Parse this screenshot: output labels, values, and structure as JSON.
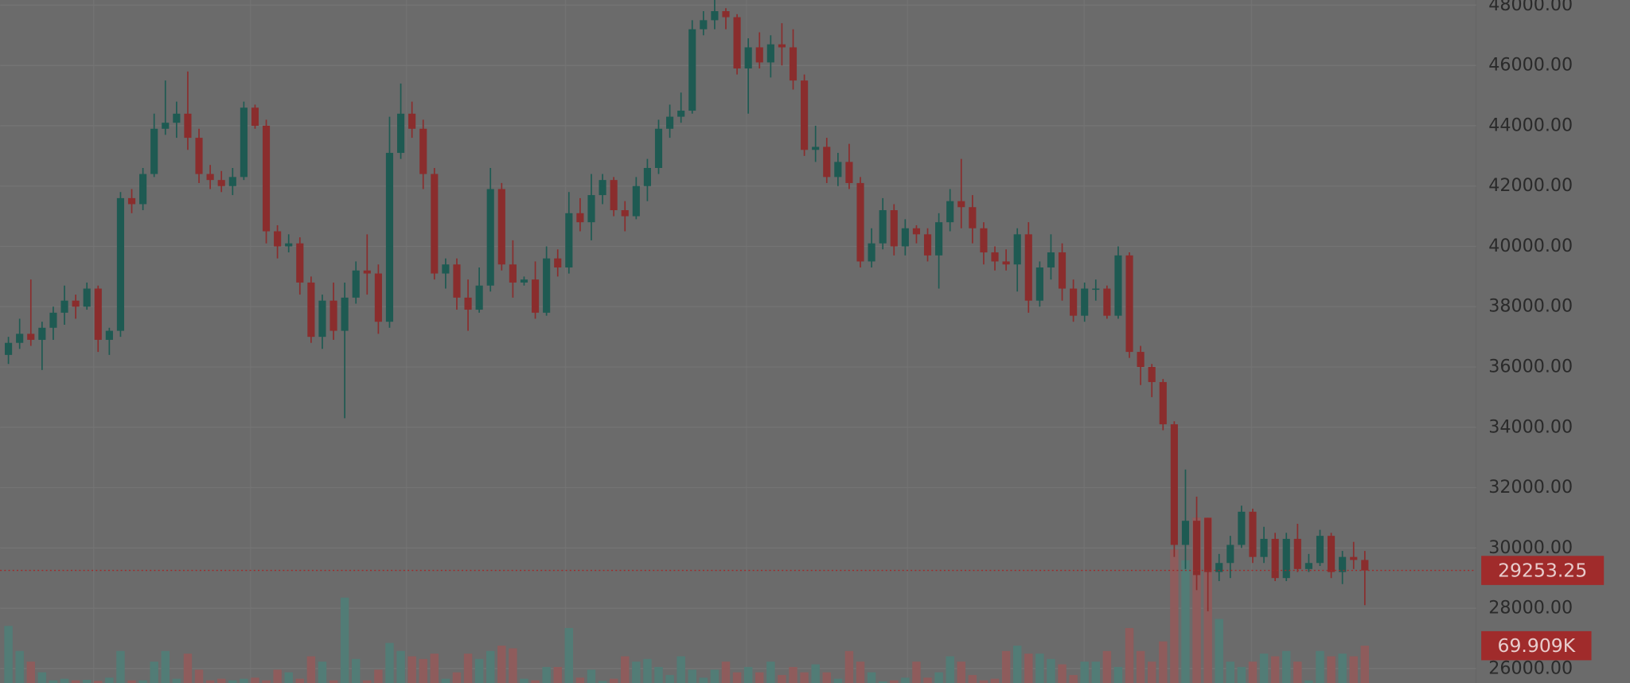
{
  "chart_data": {
    "type": "candlestick",
    "up_color": "#1e5a52",
    "down_color": "#8a2d2d",
    "volume_up_color": "#527c76",
    "volume_down_color": "#8e5c5c",
    "label_color": "#a02b2b",
    "label_text_color": "#e8cccc",
    "grid": true,
    "ylim": [
      25520,
      48170
    ],
    "yticks": [
      {
        "value": 26000,
        "label": "26000.00"
      },
      {
        "value": 28000,
        "label": "28000.00"
      },
      {
        "value": 30000,
        "label": "30000.00"
      },
      {
        "value": 32000,
        "label": "32000.00"
      },
      {
        "value": 34000,
        "label": "34000.00"
      },
      {
        "value": 36000,
        "label": "36000.00"
      },
      {
        "value": 38000,
        "label": "38000.00"
      },
      {
        "value": 40000,
        "label": "40000.00"
      },
      {
        "value": 42000,
        "label": "42000.00"
      },
      {
        "value": 44000,
        "label": "44000.00"
      },
      {
        "value": 46000,
        "label": "46000.00"
      },
      {
        "value": 48000,
        "label": "48000.00"
      }
    ],
    "open": [
      36400,
      36800,
      37100,
      36900,
      37300,
      37800,
      38200,
      38000,
      38600,
      36900,
      37200,
      41600,
      41400,
      42400,
      43900,
      44100,
      44400,
      43600,
      42400,
      42200,
      42000,
      42300,
      44600,
      44000,
      40500,
      40000,
      40100,
      38800,
      37000,
      38200,
      37200,
      38300,
      39200,
      39100,
      37500,
      43100,
      44400,
      43900,
      42400,
      39100,
      39400,
      38300,
      37900,
      38700,
      41900,
      39400,
      38800,
      38900,
      37800,
      39600,
      39300,
      41100,
      40800,
      41700,
      42200,
      41200,
      41000,
      42000,
      42600,
      43900,
      44300,
      44500,
      47200,
      47500,
      47800,
      47600,
      45900,
      46600,
      46100,
      46700,
      46600,
      45500,
      43200,
      43300,
      42300,
      42800,
      42100,
      39500,
      40100,
      41200,
      40000,
      40600,
      40400,
      39700,
      40800,
      41500,
      41300,
      40600,
      39800,
      39500,
      39400,
      40400,
      38200,
      39300,
      39800,
      38600,
      37700,
      38600,
      38600,
      37700,
      39700,
      36500,
      36000,
      35500,
      34100,
      30100,
      30900,
      31000,
      29200,
      29500,
      30100,
      31200,
      29700,
      30300,
      29000,
      30300,
      29300,
      29500,
      30400,
      29200,
      29700,
      29600
    ],
    "high": [
      37000,
      37600,
      38900,
      37500,
      38000,
      38700,
      38400,
      38800,
      38700,
      37300,
      41800,
      41900,
      42600,
      44400,
      45500,
      44800,
      45800,
      43900,
      42700,
      42500,
      42600,
      44800,
      44700,
      44200,
      40700,
      40400,
      40300,
      39000,
      38400,
      38800,
      38800,
      39500,
      40400,
      39400,
      44300,
      45400,
      44800,
      44200,
      42600,
      39600,
      39600,
      38900,
      39300,
      42600,
      42100,
      40200,
      39000,
      39500,
      40000,
      39900,
      41800,
      41600,
      42400,
      42400,
      42300,
      41500,
      42300,
      42900,
      44200,
      44700,
      45100,
      47500,
      47800,
      48300,
      47900,
      47700,
      46900,
      47100,
      47000,
      47400,
      47200,
      45700,
      44000,
      43600,
      43100,
      43400,
      42300,
      40600,
      41600,
      41400,
      40900,
      40700,
      40600,
      41100,
      41900,
      42900,
      41700,
      40800,
      40000,
      39900,
      40600,
      40800,
      39500,
      40400,
      40100,
      38900,
      38800,
      38900,
      38700,
      40000,
      39800,
      36700,
      36100,
      35600,
      34200,
      32600,
      31700,
      31000,
      29800,
      30400,
      31400,
      31300,
      30700,
      30500,
      30500,
      30800,
      29800,
      30600,
      30500,
      29900,
      30200,
      29900
    ],
    "low": [
      36100,
      36600,
      36700,
      35900,
      36900,
      37400,
      37600,
      37900,
      36500,
      36400,
      37000,
      41100,
      41200,
      42300,
      43700,
      43600,
      43200,
      42100,
      41900,
      41800,
      41700,
      42200,
      43900,
      40100,
      39600,
      39800,
      38400,
      36800,
      36600,
      36900,
      34300,
      38100,
      38400,
      37100,
      37300,
      42900,
      43600,
      41900,
      38900,
      38600,
      37900,
      37200,
      37800,
      38500,
      39200,
      38300,
      38700,
      37600,
      37700,
      39000,
      39100,
      40500,
      40200,
      41400,
      41000,
      40500,
      40900,
      41500,
      42400,
      43600,
      44100,
      44400,
      47000,
      47200,
      47200,
      45700,
      44400,
      45900,
      45600,
      46000,
      45200,
      43000,
      42800,
      42100,
      42000,
      41900,
      39300,
      39300,
      39900,
      39700,
      39700,
      40100,
      39500,
      38600,
      40500,
      40600,
      40100,
      39400,
      39200,
      39200,
      38500,
      37800,
      38000,
      38900,
      38200,
      37500,
      37500,
      38200,
      37600,
      37600,
      36300,
      35400,
      35000,
      33900,
      29700,
      29300,
      28600,
      27900,
      28900,
      29000,
      30000,
      29500,
      29500,
      28900,
      28900,
      29200,
      29200,
      29400,
      29000,
      28800,
      29300,
      28100
    ],
    "close": [
      36800,
      37100,
      36900,
      37300,
      37800,
      38200,
      38000,
      38600,
      36900,
      37200,
      41600,
      41400,
      42400,
      43900,
      44100,
      44400,
      43600,
      42400,
      42200,
      42000,
      42300,
      44600,
      44000,
      40500,
      40000,
      40100,
      38800,
      37000,
      38200,
      37200,
      38300,
      39200,
      39100,
      37500,
      43100,
      44400,
      43900,
      42400,
      39100,
      39400,
      38300,
      37900,
      38700,
      41900,
      39400,
      38800,
      38900,
      37800,
      39600,
      39300,
      41100,
      40800,
      41700,
      42200,
      41200,
      41000,
      42000,
      42600,
      43900,
      44300,
      44500,
      47200,
      47500,
      47800,
      47600,
      45900,
      46600,
      46100,
      46700,
      46600,
      45500,
      43200,
      43300,
      42300,
      42800,
      42100,
      39500,
      40100,
      41200,
      40000,
      40600,
      40400,
      39700,
      40800,
      41500,
      41300,
      40600,
      39800,
      39500,
      39400,
      40400,
      38200,
      39300,
      39800,
      38600,
      37700,
      38600,
      38600,
      37700,
      39700,
      36500,
      36000,
      35500,
      34100,
      30100,
      30900,
      29100,
      29200,
      29500,
      30100,
      31200,
      29700,
      30300,
      29000,
      30300,
      29300,
      29500,
      30400,
      29200,
      29700,
      29600,
      29253.25
    ],
    "volume": {
      "lim": [
        0,
        1280000
      ],
      "last_label": "69.909K",
      "values": [
        107000,
        60000,
        40000,
        20000,
        5000,
        8000,
        5000,
        6000,
        4000,
        10000,
        60000,
        5000,
        5000,
        40000,
        60000,
        8000,
        55000,
        25000,
        5000,
        8000,
        5000,
        8000,
        10000,
        5000,
        25000,
        20000,
        8000,
        50000,
        40000,
        5000,
        160000,
        45000,
        5000,
        25000,
        75000,
        60000,
        50000,
        45000,
        55000,
        8000,
        20000,
        55000,
        45000,
        60000,
        70000,
        65000,
        8000,
        5000,
        30000,
        30000,
        103000,
        10000,
        25000,
        4000,
        8000,
        50000,
        40000,
        45000,
        30000,
        15000,
        50000,
        25000,
        10000,
        25000,
        40000,
        20000,
        30000,
        20000,
        40000,
        15000,
        30000,
        20000,
        35000,
        20000,
        8000,
        60000,
        40000,
        20000,
        3000,
        5000,
        10000,
        40000,
        10000,
        20000,
        50000,
        40000,
        15000,
        5000,
        8000,
        60000,
        70000,
        55000,
        55000,
        45000,
        35000,
        15000,
        40000,
        40000,
        60000,
        30000,
        103000,
        60000,
        40000,
        78000,
        250000,
        230000,
        310000,
        310000,
        120000,
        40000,
        30000,
        40000,
        55000,
        50000,
        60000,
        40000,
        5000,
        60000,
        50000,
        55000,
        50000,
        69909
      ]
    }
  }
}
